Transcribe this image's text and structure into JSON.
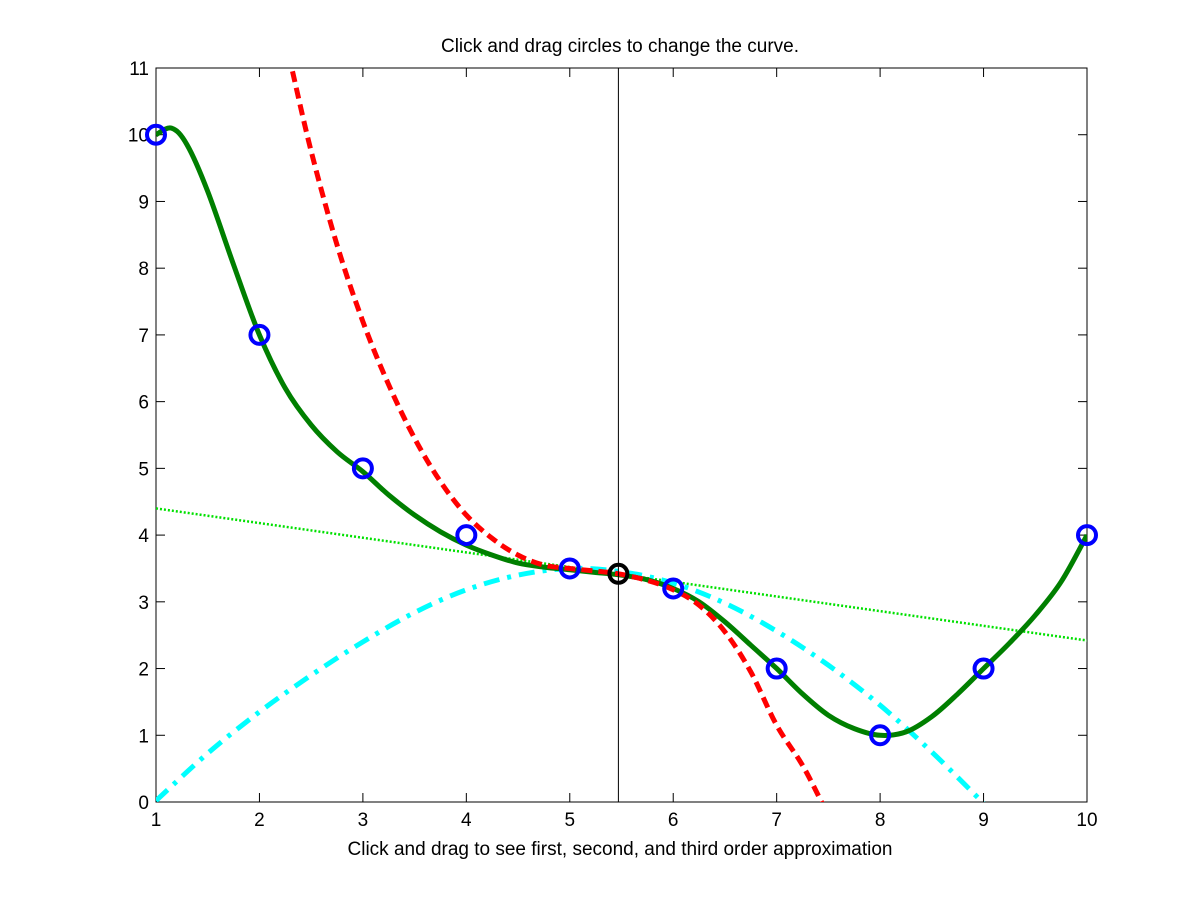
{
  "window": {
    "background": "#ffffff"
  },
  "chart_data": {
    "type": "line",
    "title": "Click and drag circles to change the curve.",
    "xlabel": "Click and drag to see first, second, and third order approximation",
    "ylabel": "",
    "xlim": [
      1,
      10
    ],
    "ylim": [
      0,
      11
    ],
    "xticks": [
      1,
      2,
      3,
      4,
      5,
      6,
      7,
      8,
      9,
      10
    ],
    "yticks": [
      0,
      1,
      2,
      3,
      4,
      5,
      6,
      7,
      8,
      9,
      10,
      11
    ],
    "grid": false,
    "legend": "none",
    "cursor": {
      "x": 5.47,
      "color": "#000000"
    },
    "control_points": {
      "color": "#0000ff",
      "x": [
        1,
        2,
        3,
        4,
        5,
        6,
        7,
        8,
        9,
        10
      ],
      "y": [
        10,
        7,
        5,
        4,
        3.5,
        3.2,
        2,
        1,
        2,
        4
      ]
    },
    "anchor_point": {
      "x": 5.47,
      "y": 3.42,
      "color": "#000000"
    },
    "series": [
      {
        "role": "curve",
        "color": "#007f00",
        "style": "solid",
        "x": [
          1,
          1.15,
          1.3,
          1.5,
          1.75,
          2,
          2.25,
          2.5,
          2.75,
          3,
          3.25,
          3.5,
          3.75,
          4,
          4.25,
          4.5,
          4.75,
          5,
          5.25,
          5.5,
          5.75,
          6,
          6.25,
          6.5,
          6.75,
          7,
          7.25,
          7.5,
          7.75,
          8,
          8.25,
          8.5,
          8.75,
          9,
          9.25,
          9.5,
          9.75,
          10
        ],
        "y": [
          10,
          10.1,
          9.85,
          9.15,
          8.05,
          7,
          6.2,
          5.65,
          5.25,
          4.95,
          4.6,
          4.3,
          4.05,
          3.85,
          3.7,
          3.58,
          3.52,
          3.48,
          3.44,
          3.4,
          3.33,
          3.2,
          3.0,
          2.7,
          2.35,
          2.0,
          1.62,
          1.3,
          1.1,
          1.0,
          1.05,
          1.28,
          1.62,
          2.0,
          2.38,
          2.8,
          3.3,
          4.0
        ]
      },
      {
        "role": "first-order",
        "color": "#00e000",
        "style": "dotted",
        "x": [
          1,
          10
        ],
        "y": [
          4.4,
          2.42
        ]
      },
      {
        "role": "second-order",
        "color": "#00ffff",
        "style": "dash-dot",
        "x": [
          1,
          1.5,
          2,
          2.5,
          3,
          3.5,
          4,
          4.5,
          5,
          5.5,
          6,
          6.5,
          7,
          7.5,
          8,
          8.5,
          9
        ],
        "y": [
          0.02,
          0.73,
          1.35,
          1.9,
          2.4,
          2.84,
          3.18,
          3.4,
          3.5,
          3.45,
          3.28,
          2.98,
          2.56,
          2.05,
          1.45,
          0.75,
          -0.02
        ]
      },
      {
        "role": "third-order",
        "color": "#ff0000",
        "style": "dashed",
        "x": [
          2.32,
          2.5,
          2.75,
          3,
          3.25,
          3.5,
          3.75,
          4,
          4.25,
          4.5,
          4.75,
          5,
          5.25,
          5.47,
          5.75,
          6,
          6.25,
          6.5,
          6.75,
          7,
          7.25,
          7.45
        ],
        "y": [
          10.95,
          9.75,
          8.35,
          7.2,
          6.25,
          5.45,
          4.8,
          4.3,
          3.95,
          3.7,
          3.55,
          3.5,
          3.46,
          3.42,
          3.32,
          3.18,
          2.95,
          2.55,
          1.95,
          1.15,
          0.55,
          -0.05
        ]
      }
    ]
  }
}
